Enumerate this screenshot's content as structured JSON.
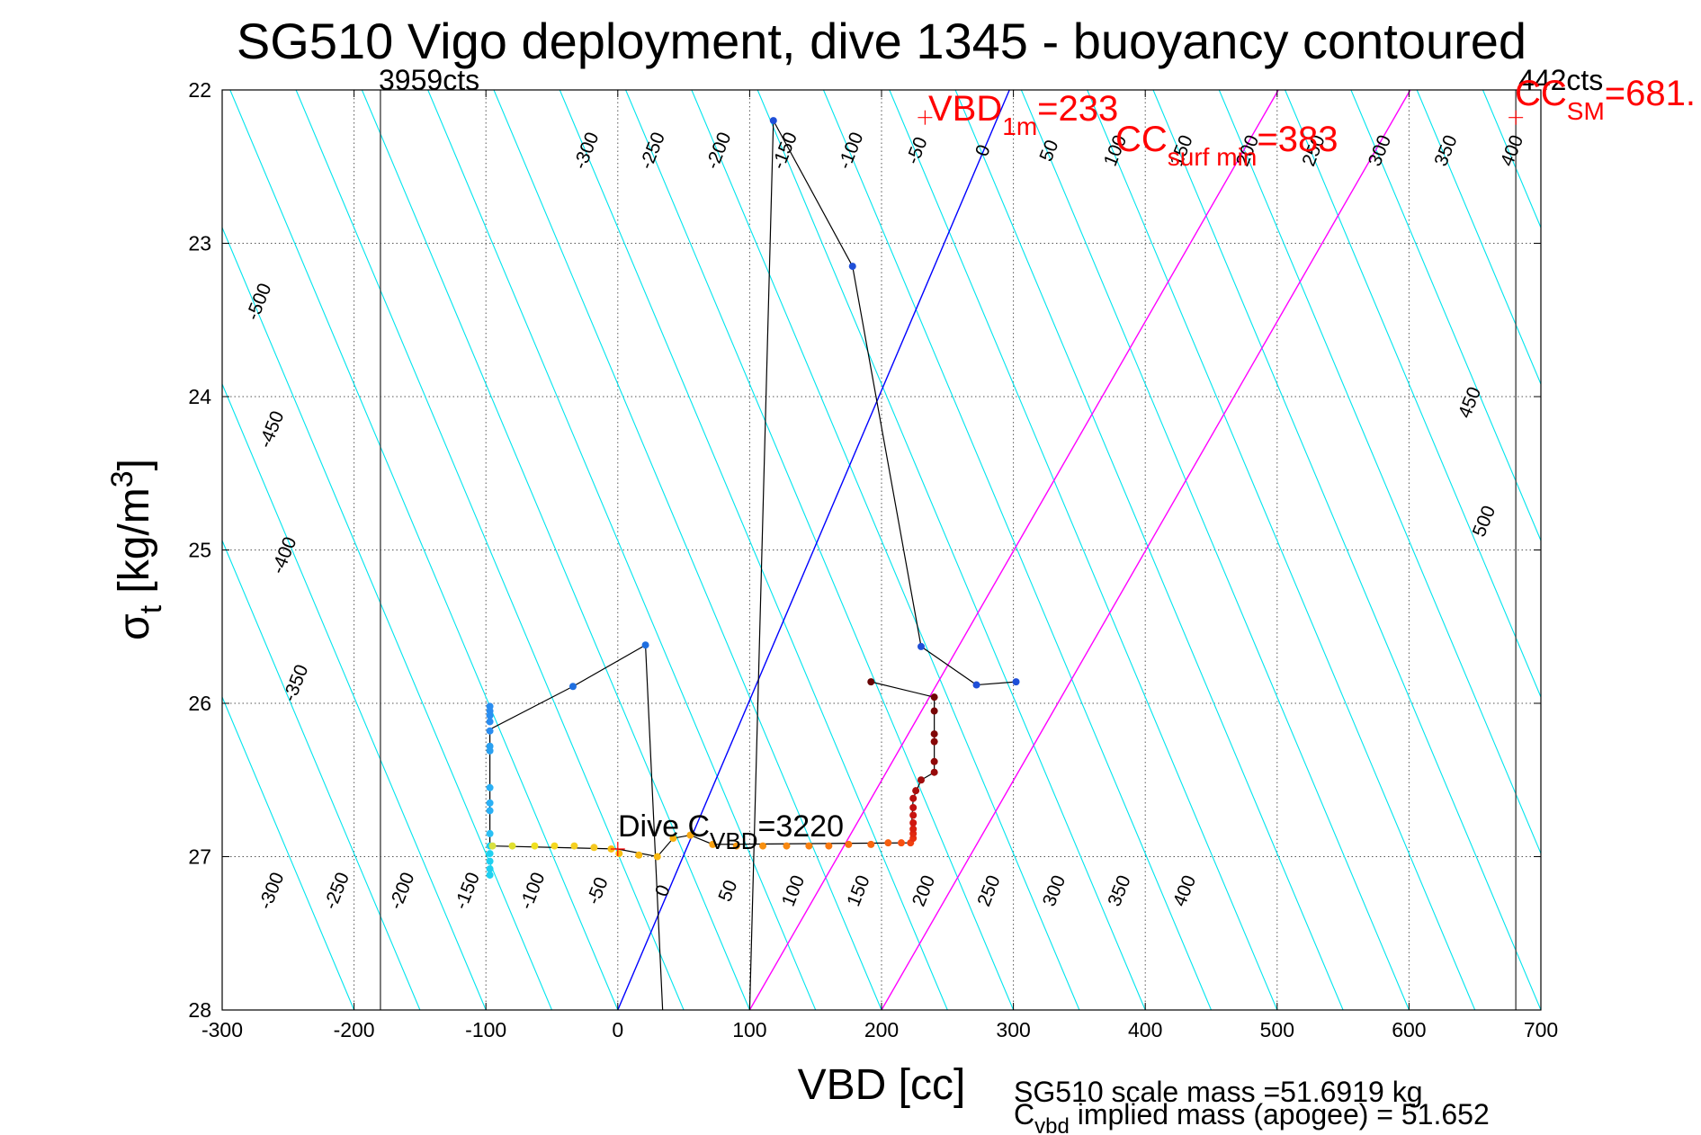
{
  "chart_data": {
    "type": "scatter",
    "title": "SG510 Vigo deployment, dive 1345 - buoyancy contoured",
    "xlabel": "VBD [cc]",
    "ylabel_main": "σ",
    "ylabel_sub": "t",
    "ylabel_unit": " [kg/m",
    "ylabel_sup": "3",
    "ylabel_close": "]",
    "xlim": [
      -300,
      700
    ],
    "ylim": [
      22,
      28
    ],
    "y_reversed": true,
    "grid": true,
    "x_ticks": [
      "-300",
      "-200",
      "-100",
      "0",
      "100",
      "200",
      "300",
      "400",
      "500",
      "600",
      "700"
    ],
    "y_ticks": [
      "22",
      "23",
      "24",
      "25",
      "26",
      "27",
      "28"
    ],
    "colors": {
      "buoyancy_contours": "#00e5ee",
      "zero_line": "#0000ff",
      "cc_lines": "#ff00ff",
      "limits": "#444444",
      "annotation_red": "#ff0000",
      "profile_line": "#000000"
    },
    "buoyancy_contour_labels": {
      "top": [
        "-300",
        "-250",
        "-200",
        "-150",
        "-100",
        "-50",
        "0",
        "50",
        "100",
        "150",
        "200",
        "250",
        "300",
        "350",
        "400"
      ],
      "left": [
        "-500",
        "-450",
        "-400",
        "-350"
      ],
      "right": [
        "450",
        "500"
      ],
      "bottom": [
        "-300",
        "-250",
        "-200",
        "-150",
        "-100",
        "-50",
        "0",
        "50",
        "100",
        "150",
        "200",
        "250",
        "300",
        "350",
        "400"
      ]
    },
    "limits": {
      "min_vbd": -180,
      "min_label": "3959cts",
      "max_vbd": 681,
      "max_label": "442cts"
    },
    "annotations": {
      "vbd1m_main": "VBD",
      "vbd1m_sub": "1m",
      "vbd1m_value": "=233",
      "vbd1m_point": [
        233,
        22.18
      ],
      "ccsurf_main": "CC",
      "ccsurf_sub": "surf min",
      "ccsurf_value": "=383",
      "ccsm_main": "CC",
      "ccsm_sub": "SM",
      "ccsm_value": "=681.",
      "ccsm_point": [
        681,
        22.18
      ],
      "dive_main": "Dive C",
      "dive_sub": "VBD",
      "dive_value": "=3220",
      "dive_point": [
        0,
        26.95
      ]
    },
    "footer": {
      "scale_mass": "SG510 scale mass =51.6919 kg",
      "implied_main": "C",
      "implied_sub": "vbd",
      "implied_rest": " implied mass (apogee) = 51.652"
    },
    "profile_path": [
      [
        100,
        28.0
      ],
      [
        118,
        22.2
      ],
      [
        178,
        23.15
      ],
      [
        230,
        25.63
      ],
      [
        272,
        25.88
      ],
      [
        302,
        25.86
      ]
    ],
    "profile_path2": [
      [
        34,
        28.0
      ],
      [
        21,
        25.62
      ],
      [
        -34,
        25.89
      ],
      [
        -97,
        26.17
      ],
      [
        -97,
        26.95
      ]
    ],
    "down_points": [
      {
        "x": 118,
        "y": 22.2,
        "c": "#1f4fd8"
      },
      {
        "x": 178,
        "y": 23.15,
        "c": "#1f4fd8"
      },
      {
        "x": 230,
        "y": 25.63,
        "c": "#1f4fd8"
      },
      {
        "x": 272,
        "y": 25.88,
        "c": "#1f4fd8"
      },
      {
        "x": 302,
        "y": 25.86,
        "c": "#1f4fd8"
      },
      {
        "x": 21,
        "y": 25.62,
        "c": "#1f6fe0"
      },
      {
        "x": -34,
        "y": 25.89,
        "c": "#1f6fe0"
      },
      {
        "x": -97,
        "y": 26.02,
        "c": "#2a8df0"
      },
      {
        "x": -97,
        "y": 26.05,
        "c": "#2a8df0"
      },
      {
        "x": -97,
        "y": 26.08,
        "c": "#2a8df0"
      },
      {
        "x": -97,
        "y": 26.12,
        "c": "#2a8df0"
      },
      {
        "x": -97,
        "y": 26.18,
        "c": "#2a8df0"
      },
      {
        "x": -97,
        "y": 26.28,
        "c": "#2aa0f0"
      },
      {
        "x": -97,
        "y": 26.31,
        "c": "#2aa0f0"
      },
      {
        "x": -97,
        "y": 26.55,
        "c": "#2ab0f5"
      },
      {
        "x": -97,
        "y": 26.65,
        "c": "#2ab0f5"
      },
      {
        "x": -97,
        "y": 26.7,
        "c": "#2ab0f5"
      },
      {
        "x": -97,
        "y": 26.85,
        "c": "#2ac0f5"
      },
      {
        "x": -97,
        "y": 26.93,
        "c": "#20d0f0"
      },
      {
        "x": -97,
        "y": 26.98,
        "c": "#20d0f0"
      },
      {
        "x": -97,
        "y": 27.03,
        "c": "#20d0f0"
      },
      {
        "x": -97,
        "y": 27.08,
        "c": "#20d0f0"
      },
      {
        "x": -97,
        "y": 27.12,
        "c": "#20d0f0"
      }
    ],
    "up_points": [
      {
        "x": -95,
        "y": 26.93,
        "c": "#d8e040"
      },
      {
        "x": -80,
        "y": 26.93,
        "c": "#e0e030"
      },
      {
        "x": -63,
        "y": 26.93,
        "c": "#f0e020"
      },
      {
        "x": -48,
        "y": 26.93,
        "c": "#f5d820"
      },
      {
        "x": -33,
        "y": 26.93,
        "c": "#f5d020"
      },
      {
        "x": -18,
        "y": 26.94,
        "c": "#f5c820"
      },
      {
        "x": -5,
        "y": 26.95,
        "c": "#f8c010"
      },
      {
        "x": 1,
        "y": 26.98,
        "c": "#f8c010"
      },
      {
        "x": 16,
        "y": 26.99,
        "c": "#f8b810"
      },
      {
        "x": 30,
        "y": 27.0,
        "c": "#f8b810"
      },
      {
        "x": 42,
        "y": 26.88,
        "c": "#f8b010"
      },
      {
        "x": 55,
        "y": 26.86,
        "c": "#f8a810"
      },
      {
        "x": 72,
        "y": 26.92,
        "c": "#f8a010"
      },
      {
        "x": 90,
        "y": 26.93,
        "c": "#f89810"
      },
      {
        "x": 110,
        "y": 26.93,
        "c": "#f89010"
      },
      {
        "x": 128,
        "y": 26.93,
        "c": "#f88810"
      },
      {
        "x": 145,
        "y": 26.93,
        "c": "#f88010"
      },
      {
        "x": 160,
        "y": 26.93,
        "c": "#f87810"
      },
      {
        "x": 175,
        "y": 26.92,
        "c": "#f87010"
      },
      {
        "x": 192,
        "y": 26.92,
        "c": "#f86810"
      },
      {
        "x": 205,
        "y": 26.91,
        "c": "#f86010"
      },
      {
        "x": 215,
        "y": 26.91,
        "c": "#f85010"
      },
      {
        "x": 222,
        "y": 26.91,
        "c": "#f04010"
      },
      {
        "x": 224,
        "y": 26.88,
        "c": "#e83010"
      },
      {
        "x": 224,
        "y": 26.85,
        "c": "#e02810"
      },
      {
        "x": 224,
        "y": 26.82,
        "c": "#d82010"
      },
      {
        "x": 224,
        "y": 26.78,
        "c": "#d01810"
      },
      {
        "x": 224,
        "y": 26.73,
        "c": "#c81410"
      },
      {
        "x": 224,
        "y": 26.68,
        "c": "#c01010"
      },
      {
        "x": 224,
        "y": 26.62,
        "c": "#b81010"
      },
      {
        "x": 226,
        "y": 26.57,
        "c": "#a80e0e"
      },
      {
        "x": 230,
        "y": 26.5,
        "c": "#a00c0c"
      },
      {
        "x": 240,
        "y": 26.45,
        "c": "#980a0a"
      },
      {
        "x": 240,
        "y": 26.38,
        "c": "#900808"
      },
      {
        "x": 240,
        "y": 26.25,
        "c": "#880808"
      },
      {
        "x": 240,
        "y": 26.2,
        "c": "#800606"
      },
      {
        "x": 240,
        "y": 26.05,
        "c": "#780606"
      },
      {
        "x": 240,
        "y": 25.96,
        "c": "#700404"
      },
      {
        "x": 192,
        "y": 25.86,
        "c": "#680404"
      }
    ],
    "up_path": [
      [
        -97,
        26.93
      ],
      [
        0,
        26.95
      ],
      [
        30,
        27.0
      ],
      [
        42,
        26.88
      ],
      [
        55,
        26.86
      ],
      [
        72,
        26.92
      ],
      [
        222,
        26.91
      ],
      [
        224,
        26.62
      ],
      [
        230,
        26.5
      ],
      [
        240,
        26.45
      ],
      [
        240,
        25.96
      ],
      [
        192,
        25.86
      ]
    ]
  }
}
